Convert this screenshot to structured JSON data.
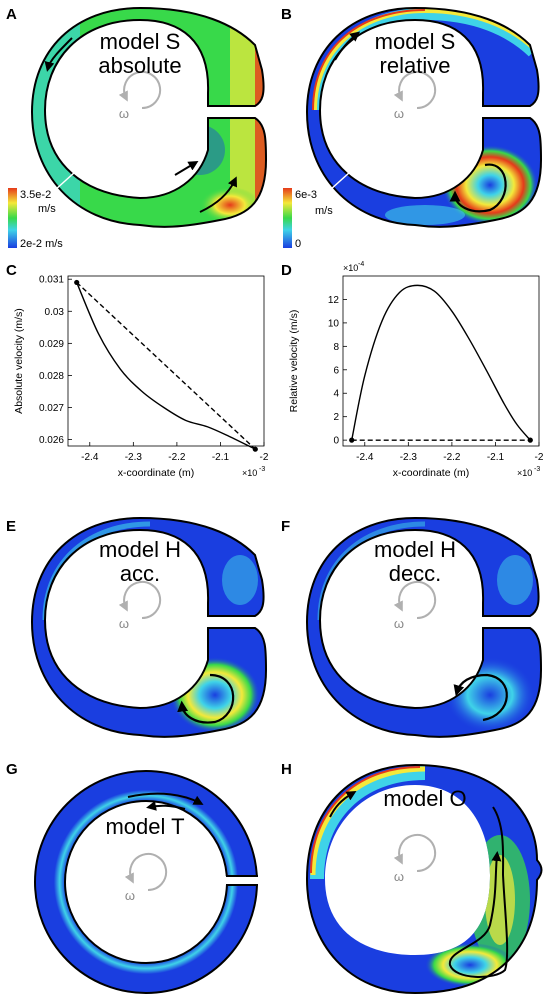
{
  "figure": {
    "panels": [
      {
        "letter": "A",
        "title_lines": [
          "model S",
          "absolute"
        ],
        "omega": "ω",
        "colorbar": {
          "max": "3.5e-2",
          "max_unit": "m/s",
          "min": "2e-2 m/s"
        }
      },
      {
        "letter": "B",
        "title_lines": [
          "model S",
          "relative"
        ],
        "omega": "ω",
        "colorbar": {
          "max": "6e-3",
          "max_unit": "m/s",
          "min": "0"
        }
      },
      {
        "letter": "C"
      },
      {
        "letter": "D"
      },
      {
        "letter": "E",
        "title_lines": [
          "model H",
          "acc."
        ],
        "omega": "ω"
      },
      {
        "letter": "F",
        "title_lines": [
          "model H",
          "decc."
        ],
        "omega": "ω"
      },
      {
        "letter": "G",
        "title_lines": [
          "model T"
        ],
        "omega": "ω"
      },
      {
        "letter": "H",
        "title_lines": [
          "model O"
        ],
        "omega": "ω"
      }
    ]
  },
  "colors": {
    "blue": "#1a3ee0",
    "cyan": "#3fd3e8",
    "green": "#38d94a",
    "yellow": "#f4e93a",
    "red": "#e53a1a",
    "white_cut": "#ffffff"
  },
  "chart_data": [
    {
      "type": "line",
      "panel": "C",
      "xlabel": "x-coordinate (m)",
      "ylabel": "Absolute velocity (m/s)",
      "x_multiplier": "×10",
      "x_exponent": "-3",
      "xlim": [
        -2.45,
        -2.0
      ],
      "ylim": [
        0.0258,
        0.0311
      ],
      "xticks": [
        "-2.4",
        "-2.3",
        "-2.2",
        "-2.1",
        "-2"
      ],
      "xtick_values": [
        -2.4,
        -2.3,
        -2.2,
        -2.1,
        -2.0
      ],
      "yticks": [
        "0.026",
        "0.027",
        "0.028",
        "0.029",
        "0.03",
        "0.031"
      ],
      "ytick_values": [
        0.026,
        0.027,
        0.028,
        0.029,
        0.03,
        0.031
      ],
      "series": [
        {
          "style": "solid",
          "x": [
            -2.43,
            -2.38,
            -2.33,
            -2.28,
            -2.23,
            -2.18,
            -2.13,
            -2.08,
            -2.02
          ],
          "y": [
            0.0309,
            0.0293,
            0.0282,
            0.0275,
            0.027,
            0.0266,
            0.0264,
            0.0261,
            0.0257
          ]
        },
        {
          "style": "dashed",
          "x": [
            -2.43,
            -2.02
          ],
          "y": [
            0.0309,
            0.0257
          ]
        }
      ],
      "markers": {
        "x": [
          -2.43,
          -2.02
        ],
        "y": [
          0.0309,
          0.0257
        ]
      }
    },
    {
      "type": "line",
      "panel": "D",
      "xlabel": "x-coordinate (m)",
      "ylabel": "Relative velocity (m/s)",
      "y_multiplier": "×10",
      "y_exponent": "-4",
      "x_multiplier": "×10",
      "x_exponent": "-3",
      "xlim": [
        -2.45,
        -2.0
      ],
      "ylim": [
        -0.5,
        14
      ],
      "xticks": [
        "-2.4",
        "-2.3",
        "-2.2",
        "-2.1",
        "-2"
      ],
      "xtick_values": [
        -2.4,
        -2.3,
        -2.2,
        -2.1,
        -2.0
      ],
      "yticks": [
        "0",
        "2",
        "4",
        "6",
        "8",
        "10",
        "12"
      ],
      "ytick_values": [
        0,
        2,
        4,
        6,
        8,
        10,
        12
      ],
      "series": [
        {
          "style": "solid",
          "x": [
            -2.43,
            -2.4,
            -2.36,
            -2.32,
            -2.28,
            -2.24,
            -2.2,
            -2.16,
            -2.12,
            -2.08,
            -2.05,
            -2.02
          ],
          "y": [
            0,
            5.5,
            10.2,
            12.6,
            13.2,
            12.7,
            11.0,
            8.6,
            5.9,
            3.1,
            1.3,
            0
          ]
        },
        {
          "style": "dashed",
          "x": [
            -2.43,
            -2.02
          ],
          "y": [
            0,
            0
          ]
        }
      ],
      "markers": {
        "x": [
          -2.43,
          -2.02
        ],
        "y": [
          0,
          0
        ]
      }
    }
  ]
}
